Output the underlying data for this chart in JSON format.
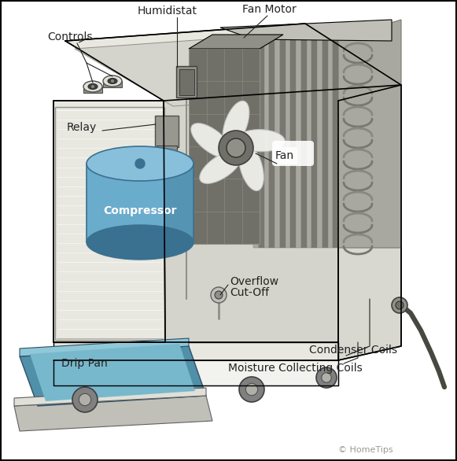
{
  "background": "#ffffff",
  "labels": {
    "controls": "Controls",
    "humidistat": "Humidistat",
    "fan_motor": "Fan Motor",
    "relay": "Relay",
    "fan": "Fan",
    "compressor": "Compressor",
    "overflow_cutoff": "Overflow\nCut-Off",
    "drip_pan": "Drip Pan",
    "condenser_coils": "Condenser Coils",
    "moisture_coils": "Moisture Collecting Coils",
    "copyright": "© HomeTips"
  },
  "colors": {
    "white": "#ffffff",
    "off_white": "#f0f0ec",
    "light_gray": "#e0e0d8",
    "med_gray": "#c0c0b8",
    "dark_gray": "#909088",
    "darker_gray": "#707068",
    "cabinet_top": "#e8e8e0",
    "cabinet_face": "#f2f2ee",
    "cabinet_side": "#d8d8d0",
    "inner_bg": "#d4d4cc",
    "louver_face": "#e8e8e0",
    "louver_shadow": "#b0b0a8",
    "coil_fin": "#a8a8a0",
    "coil_fin_dark": "#787870",
    "coil_tube": "#888880",
    "fan_blade": "#f0f0ec",
    "fan_hub": "#707068",
    "compressor_blue": "#6aaccc",
    "compressor_top_blue": "#88c0dc",
    "compressor_dark": "#3a7090",
    "drip_teal": "#5090a8",
    "drip_light": "#78b8cc",
    "drip_top": "#90c8d8",
    "wheel": "#808080",
    "relay_gray": "#989890",
    "cord": "#484840",
    "black": "#000000",
    "annotation": "#222222"
  }
}
